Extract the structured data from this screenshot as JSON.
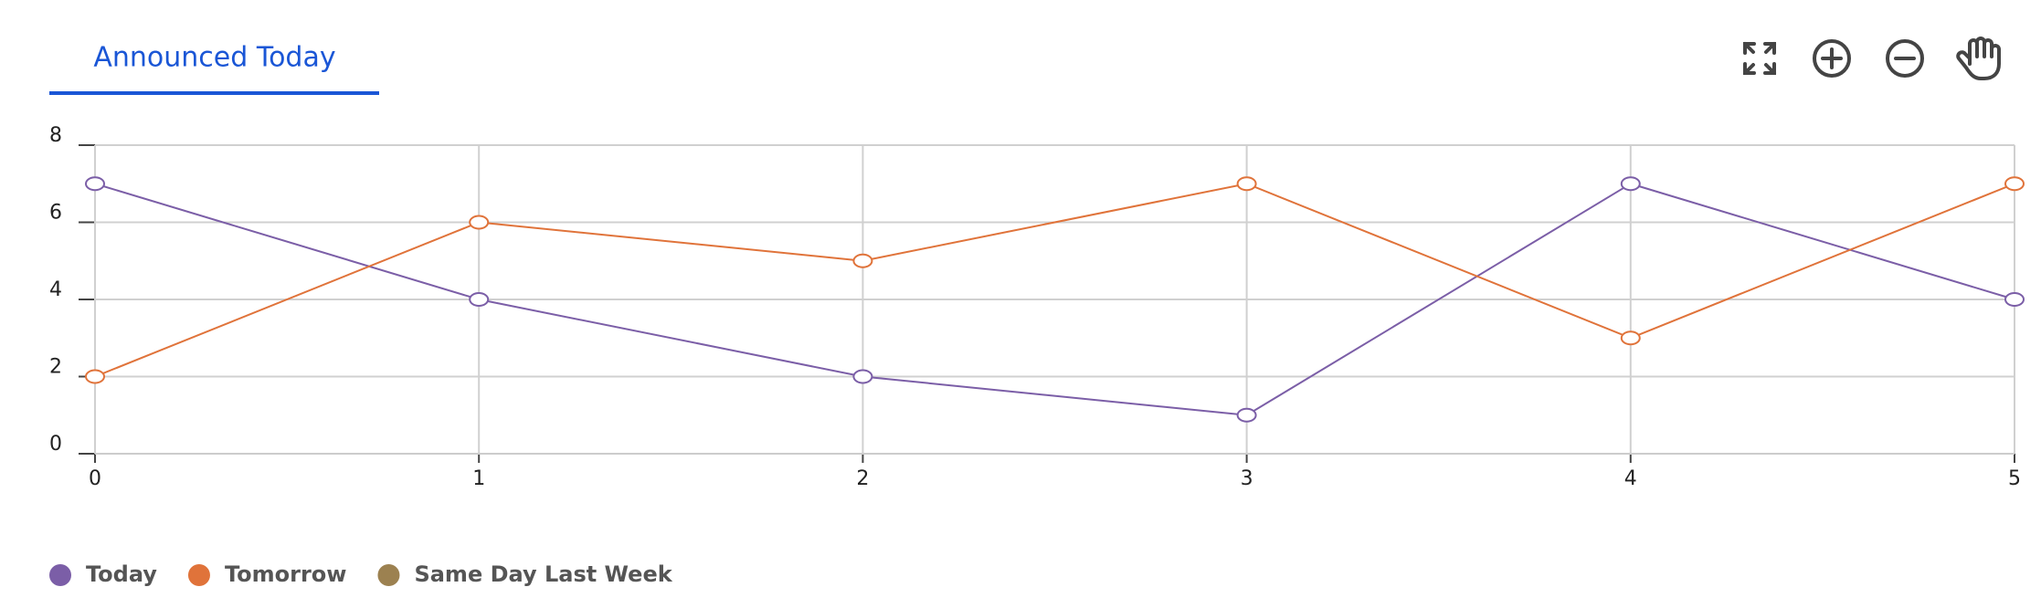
{
  "tab": {
    "label": "Announced Today"
  },
  "chart_data": {
    "type": "line",
    "x": [
      0,
      1,
      2,
      3,
      4,
      5
    ],
    "xlim": [
      0,
      5
    ],
    "xticks": [
      0,
      1,
      2,
      3,
      4,
      5
    ],
    "ylim": [
      0,
      8
    ],
    "yticks": [
      0,
      2,
      4,
      6,
      8
    ],
    "grid": true,
    "legend": "bottom-left",
    "series": [
      {
        "name": "Today",
        "color": "#7b5ea7",
        "values": [
          7,
          4,
          2,
          1,
          7,
          4
        ]
      },
      {
        "name": "Tomorrow",
        "color": "#e0733a",
        "values": [
          2,
          6,
          5,
          7,
          3,
          7
        ]
      },
      {
        "name": "Same Day Last Week",
        "color": "#9c8150",
        "values": [
          null,
          null,
          null,
          null,
          null,
          null
        ]
      }
    ]
  }
}
